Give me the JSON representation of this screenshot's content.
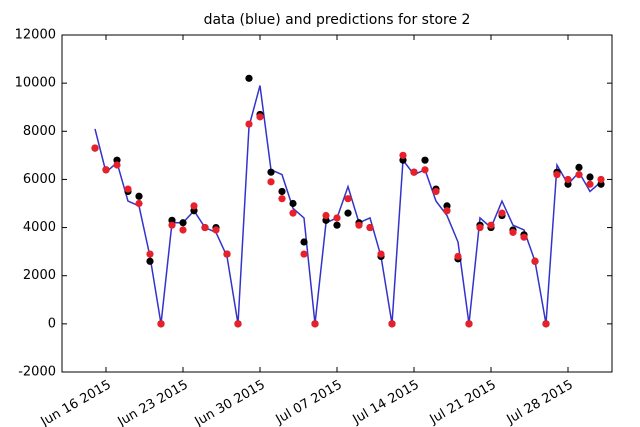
{
  "chart_data": {
    "type": "line",
    "title": "data (blue) and predictions for store 2",
    "x": [
      "2015-06-15",
      "2015-06-16",
      "2015-06-17",
      "2015-06-18",
      "2015-06-19",
      "2015-06-20",
      "2015-06-21",
      "2015-06-22",
      "2015-06-23",
      "2015-06-24",
      "2015-06-25",
      "2015-06-26",
      "2015-06-27",
      "2015-06-28",
      "2015-06-29",
      "2015-06-30",
      "2015-07-01",
      "2015-07-02",
      "2015-07-03",
      "2015-07-04",
      "2015-07-05",
      "2015-07-06",
      "2015-07-07",
      "2015-07-08",
      "2015-07-09",
      "2015-07-10",
      "2015-07-11",
      "2015-07-12",
      "2015-07-13",
      "2015-07-14",
      "2015-07-15",
      "2015-07-16",
      "2015-07-17",
      "2015-07-18",
      "2015-07-19",
      "2015-07-20",
      "2015-07-21",
      "2015-07-22",
      "2015-07-23",
      "2015-07-24",
      "2015-07-25",
      "2015-07-26",
      "2015-07-27",
      "2015-07-28",
      "2015-07-29",
      "2015-07-30",
      "2015-07-31"
    ],
    "series": [
      {
        "color": "#3333cc",
        "mode": "line",
        "values": [
          8100,
          6300,
          6700,
          5100,
          4900,
          2800,
          0,
          4200,
          4200,
          4700,
          4000,
          3800,
          2800,
          0,
          8200,
          9900,
          6400,
          6200,
          4800,
          4400,
          0,
          4200,
          4400,
          5700,
          4200,
          4400,
          2800,
          0,
          6800,
          6200,
          6400,
          5100,
          4500,
          3400,
          0,
          4400,
          4000,
          5100,
          4100,
          3900,
          2600,
          0,
          6600,
          5800,
          6300,
          5500,
          5900
        ]
      },
      {
        "color": "#000000",
        "mode": "markers",
        "values": [
          7300,
          6400,
          6800,
          5500,
          5300,
          2600,
          0,
          4300,
          4200,
          4700,
          4000,
          4000,
          2900,
          0,
          10200,
          8700,
          6300,
          5500,
          5000,
          3400,
          0,
          4300,
          4100,
          4600,
          4200,
          4000,
          2800,
          0,
          6800,
          6300,
          6800,
          5600,
          4900,
          2700,
          0,
          4100,
          4000,
          4500,
          3900,
          3700,
          2600,
          0,
          6300,
          5800,
          6500,
          6100,
          5800
        ]
      },
      {
        "color": "#e8202a",
        "mode": "markers",
        "values": [
          7300,
          6400,
          6600,
          5600,
          5000,
          2900,
          0,
          4100,
          3900,
          4900,
          4000,
          3900,
          2900,
          0,
          8300,
          8600,
          5900,
          5200,
          4600,
          2900,
          0,
          4500,
          4400,
          5200,
          4100,
          4000,
          2900,
          0,
          7000,
          6300,
          6400,
          5500,
          4700,
          2800,
          0,
          4000,
          4100,
          4600,
          3800,
          3600,
          2600,
          0,
          6200,
          6000,
          6200,
          5800,
          6000
        ]
      }
    ],
    "xlim": [
      "2015-06-12",
      "2015-08-01"
    ],
    "xticks": [
      {
        "value": "2015-06-16",
        "label": "Jun 16 2015"
      },
      {
        "value": "2015-06-23",
        "label": "Jun 23 2015"
      },
      {
        "value": "2015-06-30",
        "label": "Jun 30 2015"
      },
      {
        "value": "2015-07-07",
        "label": "Jul 07 2015"
      },
      {
        "value": "2015-07-14",
        "label": "Jul 14 2015"
      },
      {
        "value": "2015-07-21",
        "label": "Jul 21 2015"
      },
      {
        "value": "2015-07-28",
        "label": "Jul 28 2015"
      }
    ],
    "ylim": [
      -2000,
      12000
    ],
    "yticks": [
      -2000,
      0,
      2000,
      4000,
      6000,
      8000,
      10000,
      12000
    ],
    "grid": false
  }
}
